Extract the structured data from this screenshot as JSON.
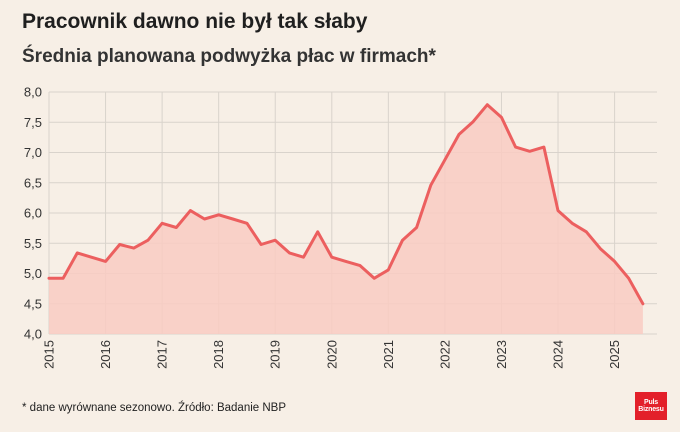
{
  "title": "Pracownik dawno nie był tak słaby",
  "subtitle": "Średnia planowana podwyżka płac w firmach*",
  "footnote": "* dane wyrównane sezonowo. Źródło: Badanie NBP",
  "logo": {
    "line1": "Puls",
    "line2": "Biznesu"
  },
  "colors": {
    "background": "#f7efe6",
    "line": "#ec5f5f",
    "fill": "#f9cbc2",
    "grid": "#d9d3cc"
  },
  "chart_data": {
    "type": "area",
    "title": "Pracownik dawno nie był tak słaby",
    "subtitle": "Średnia planowana podwyżka płac w firmach*",
    "xlabel": "",
    "ylabel": "",
    "xlim": [
      2015.0,
      2025.75
    ],
    "ylim": [
      4.0,
      8.0
    ],
    "grid": true,
    "yticks": [
      "4,0",
      "4,5",
      "5,0",
      "5,5",
      "6,0",
      "6,5",
      "7,0",
      "7,5",
      "8,0"
    ],
    "xticks": [
      "2015",
      "2016",
      "2017",
      "2018",
      "2019",
      "2020",
      "2021",
      "2022",
      "2023",
      "2024",
      "2025"
    ],
    "x": [
      2015.0,
      2015.25,
      2015.5,
      2015.75,
      2016.0,
      2016.25,
      2016.5,
      2016.75,
      2017.0,
      2017.25,
      2017.5,
      2017.75,
      2018.0,
      2018.25,
      2018.5,
      2018.75,
      2019.0,
      2019.25,
      2019.5,
      2019.75,
      2020.0,
      2020.25,
      2020.5,
      2020.75,
      2021.0,
      2021.25,
      2021.5,
      2021.75,
      2022.0,
      2022.25,
      2022.5,
      2022.75,
      2023.0,
      2023.25,
      2023.5,
      2023.75,
      2024.0,
      2024.25,
      2024.5,
      2024.75,
      2025.0,
      2025.25,
      2025.5
    ],
    "series": [
      {
        "values": [
          4.92,
          4.92,
          5.34,
          5.27,
          5.2,
          5.48,
          5.42,
          5.55,
          5.83,
          5.76,
          6.04,
          5.9,
          5.97,
          5.9,
          5.83,
          5.48,
          5.55,
          5.34,
          5.27,
          5.69,
          5.27,
          5.2,
          5.13,
          4.92,
          5.06,
          5.55,
          5.76,
          6.46,
          6.88,
          7.3,
          7.51,
          7.79,
          7.58,
          7.09,
          7.02,
          7.09,
          6.04,
          5.83,
          5.69,
          5.41,
          5.2,
          4.92,
          4.5
        ]
      }
    ]
  }
}
